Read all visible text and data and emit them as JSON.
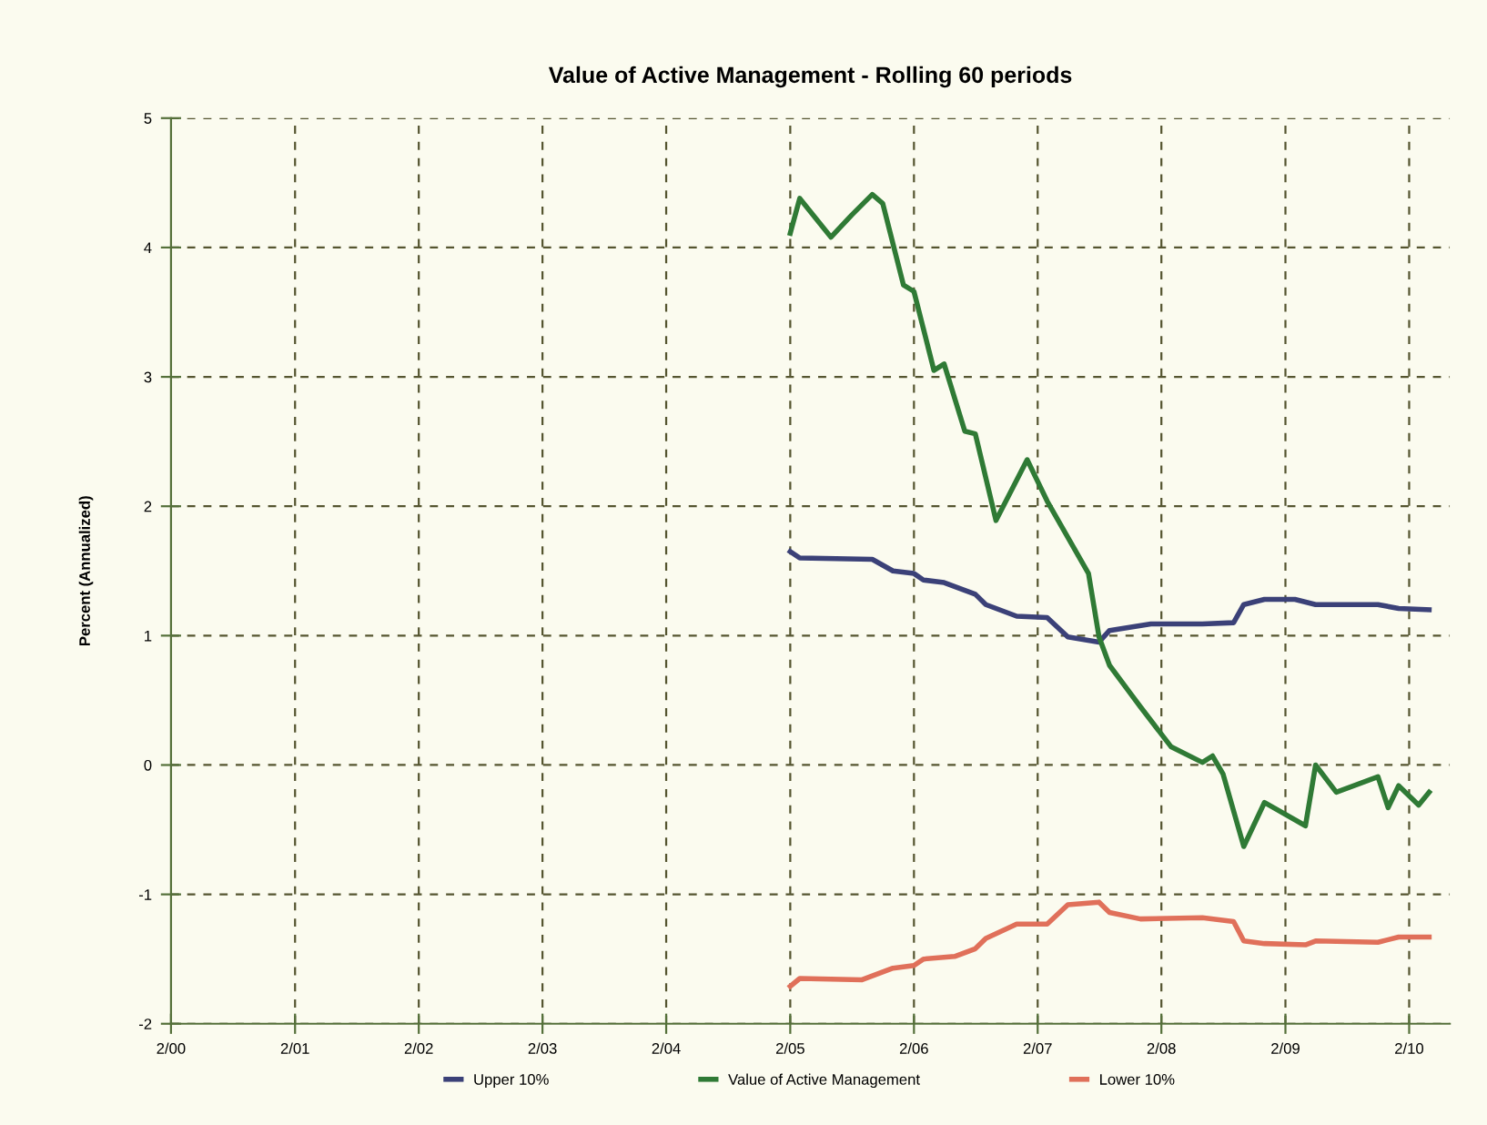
{
  "chart_data": {
    "type": "line",
    "title": "Value of Active Management - Rolling 60 periods",
    "ylabel": "Percent (Annualized)",
    "xlim": [
      "2000-02",
      "2010-06"
    ],
    "ylim": [
      -2,
      5
    ],
    "yticks": [
      -2,
      -1,
      0,
      1,
      2,
      3,
      4,
      5
    ],
    "xticks": [
      {
        "value": "2000-02",
        "label": "2/00"
      },
      {
        "value": "2001-02",
        "label": "2/01"
      },
      {
        "value": "2002-02",
        "label": "2/02"
      },
      {
        "value": "2003-02",
        "label": "2/03"
      },
      {
        "value": "2004-02",
        "label": "2/04"
      },
      {
        "value": "2005-02",
        "label": "2/05"
      },
      {
        "value": "2006-02",
        "label": "2/06"
      },
      {
        "value": "2007-02",
        "label": "2/07"
      },
      {
        "value": "2008-02",
        "label": "2/08"
      },
      {
        "value": "2009-02",
        "label": "2/09"
      },
      {
        "value": "2010-02",
        "label": "2/10"
      }
    ],
    "grid": true,
    "legend": "bottom",
    "marker": "none",
    "line_style": "solid",
    "series": [
      {
        "name": "Upper 10%",
        "color": "#3b4178",
        "x": [
          "2005-02",
          "2005-03",
          "2005-10",
          "2005-12",
          "2006-02",
          "2006-03",
          "2006-05",
          "2006-08",
          "2006-09",
          "2006-12",
          "2007-03",
          "2007-05",
          "2007-08",
          "2007-09",
          "2008-01",
          "2008-06",
          "2008-09",
          "2008-10",
          "2008-12",
          "2009-03",
          "2009-05",
          "2009-11",
          "2010-01",
          "2010-04"
        ],
        "values": [
          1.65,
          1.6,
          1.59,
          1.5,
          1.48,
          1.43,
          1.41,
          1.32,
          1.24,
          1.15,
          1.14,
          0.99,
          0.95,
          1.04,
          1.09,
          1.09,
          1.1,
          1.24,
          1.28,
          1.28,
          1.24,
          1.24,
          1.21,
          1.2
        ]
      },
      {
        "name": "Value of Active Management",
        "color": "#2f7a35",
        "x": [
          "2005-02",
          "2005-03",
          "2005-06",
          "2005-08",
          "2005-10",
          "2005-11",
          "2006-01",
          "2006-02",
          "2006-04",
          "2006-05",
          "2006-07",
          "2006-08",
          "2006-10",
          "2007-01",
          "2007-03",
          "2007-07",
          "2007-08",
          "2007-09",
          "2007-12",
          "2008-03",
          "2008-06",
          "2008-07",
          "2008-08",
          "2008-10",
          "2008-12",
          "2009-04",
          "2009-05",
          "2009-07",
          "2009-11",
          "2009-12",
          "2010-01",
          "2010-03",
          "2010-04"
        ],
        "values": [
          4.11,
          4.38,
          4.08,
          4.25,
          4.41,
          4.34,
          3.71,
          3.66,
          3.05,
          3.1,
          2.58,
          2.56,
          1.89,
          2.36,
          2.04,
          1.48,
          0.99,
          0.77,
          0.45,
          0.14,
          0.02,
          0.07,
          -0.07,
          -0.63,
          -0.29,
          -0.47,
          0.0,
          -0.21,
          -0.09,
          -0.33,
          -0.16,
          -0.31,
          -0.21
        ]
      },
      {
        "name": "Lower 10%",
        "color": "#e0705a",
        "x": [
          "2005-02",
          "2005-03",
          "2005-09",
          "2005-12",
          "2006-02",
          "2006-03",
          "2006-06",
          "2006-08",
          "2006-09",
          "2006-12",
          "2007-03",
          "2007-05",
          "2007-08",
          "2007-09",
          "2007-12",
          "2008-06",
          "2008-09",
          "2008-10",
          "2008-12",
          "2009-04",
          "2009-05",
          "2009-11",
          "2010-01",
          "2010-04"
        ],
        "values": [
          -1.71,
          -1.65,
          -1.66,
          -1.57,
          -1.55,
          -1.5,
          -1.48,
          -1.42,
          -1.34,
          -1.23,
          -1.23,
          -1.08,
          -1.06,
          -1.14,
          -1.19,
          -1.18,
          -1.21,
          -1.36,
          -1.38,
          -1.39,
          -1.36,
          -1.37,
          -1.33,
          -1.33
        ]
      }
    ]
  }
}
